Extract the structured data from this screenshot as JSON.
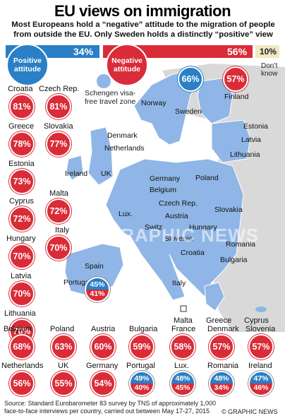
{
  "title": "EU views on immigration",
  "subtitle": "Most Europeans hold a “negative” attitude to the migration of people from outside the EU. Only Sweden holds a distinctly “positive” view",
  "summary": {
    "positive_label": "Positive attitude",
    "positive_value": "34%",
    "negative_label": "Negative attitude",
    "negative_value": "56%",
    "dontknow_value": "10%",
    "dontknow_label": "Don’t know"
  },
  "schengen_label": "Schengen visa-free travel zone",
  "left_column": [
    {
      "country": "Croatia",
      "value": "81%"
    },
    {
      "country": "Greece",
      "value": "78%"
    },
    {
      "country": "Estonia",
      "value": "73%"
    },
    {
      "country": "Cyprus",
      "value": "72%"
    },
    {
      "country": "Hungary",
      "value": "70%"
    },
    {
      "country": "Latvia",
      "value": "70%"
    },
    {
      "country": "Lithuania",
      "value": "70%"
    }
  ],
  "second_column": [
    {
      "country": "Czech Rep.",
      "value": "81%"
    },
    {
      "country": "Slovakia",
      "value": "77%"
    },
    {
      "country": "Malta",
      "value": "72%"
    },
    {
      "country": "Italy",
      "value": "70%"
    }
  ],
  "map_values": {
    "sweden": "66%",
    "finland": "57%",
    "spain_pos": "45%",
    "spain_neg": "41%"
  },
  "map_labels": {
    "norway": "Norway",
    "sweden": "Sweden",
    "finland": "Finland",
    "estonia": "Estonia",
    "latvia": "Latvia",
    "lithuania": "Lithuania",
    "denmark": "Denmark",
    "netherlands": "Netherlands",
    "ireland": "Ireland",
    "uk": "UK",
    "germany": "Germany",
    "poland": "Poland",
    "belgium": "Belgium",
    "czech": "Czech Rep.",
    "slovakia": "Slovakia",
    "lux": "Lux.",
    "austria": "Austria",
    "switz": "Switz.",
    "hungary": "Hungary",
    "france": "France",
    "slovenia": "Slovenia",
    "romania": "Romania",
    "croatia": "Croatia",
    "bulgaria": "Bulgaria",
    "portugal": "Portugal",
    "spain": "Spain",
    "italy": "Italy",
    "greece": "Greece",
    "malta": "Malta",
    "cyprus": "Cyprus"
  },
  "bottom_row1": [
    {
      "country": "Belgium",
      "value": "68%"
    },
    {
      "country": "Poland",
      "value": "63%"
    },
    {
      "country": "Austria",
      "value": "60%"
    },
    {
      "country": "Bulgaria",
      "value": "59%"
    },
    {
      "country": "France",
      "value": "58%"
    },
    {
      "country": "Denmark",
      "value": "57%"
    },
    {
      "country": "Slovenia",
      "value": "57%"
    }
  ],
  "bottom_row2": [
    {
      "country": "Netherlands",
      "value": "56%",
      "split": false
    },
    {
      "country": "UK",
      "value": "55%",
      "split": false
    },
    {
      "country": "Germany",
      "value": "54%",
      "split": false
    },
    {
      "country": "Portugal",
      "pos": "49%",
      "neg": "40%",
      "split": true
    },
    {
      "country": "Lux.",
      "pos": "48%",
      "neg": "45%",
      "split": true
    },
    {
      "country": "Romania",
      "pos": "48%",
      "neg": "34%",
      "split": true
    },
    {
      "country": "Ireland",
      "pos": "47%",
      "neg": "46%",
      "split": true
    }
  ],
  "source": "Source: Standard Eurobarometer 83 survey by TNS of approximately 1,000 face-to-face interviews per country, carried out between May 17-27, 2015",
  "credit": "© GRAPHIC NEWS",
  "watermark": "GRAPHIC NEWS",
  "colors": {
    "positive": "#2a7fc6",
    "negative": "#da2c38",
    "dontknow": "#f1e7c3",
    "schengen": "#8fb6e6",
    "land": "#d9d9d9"
  }
}
